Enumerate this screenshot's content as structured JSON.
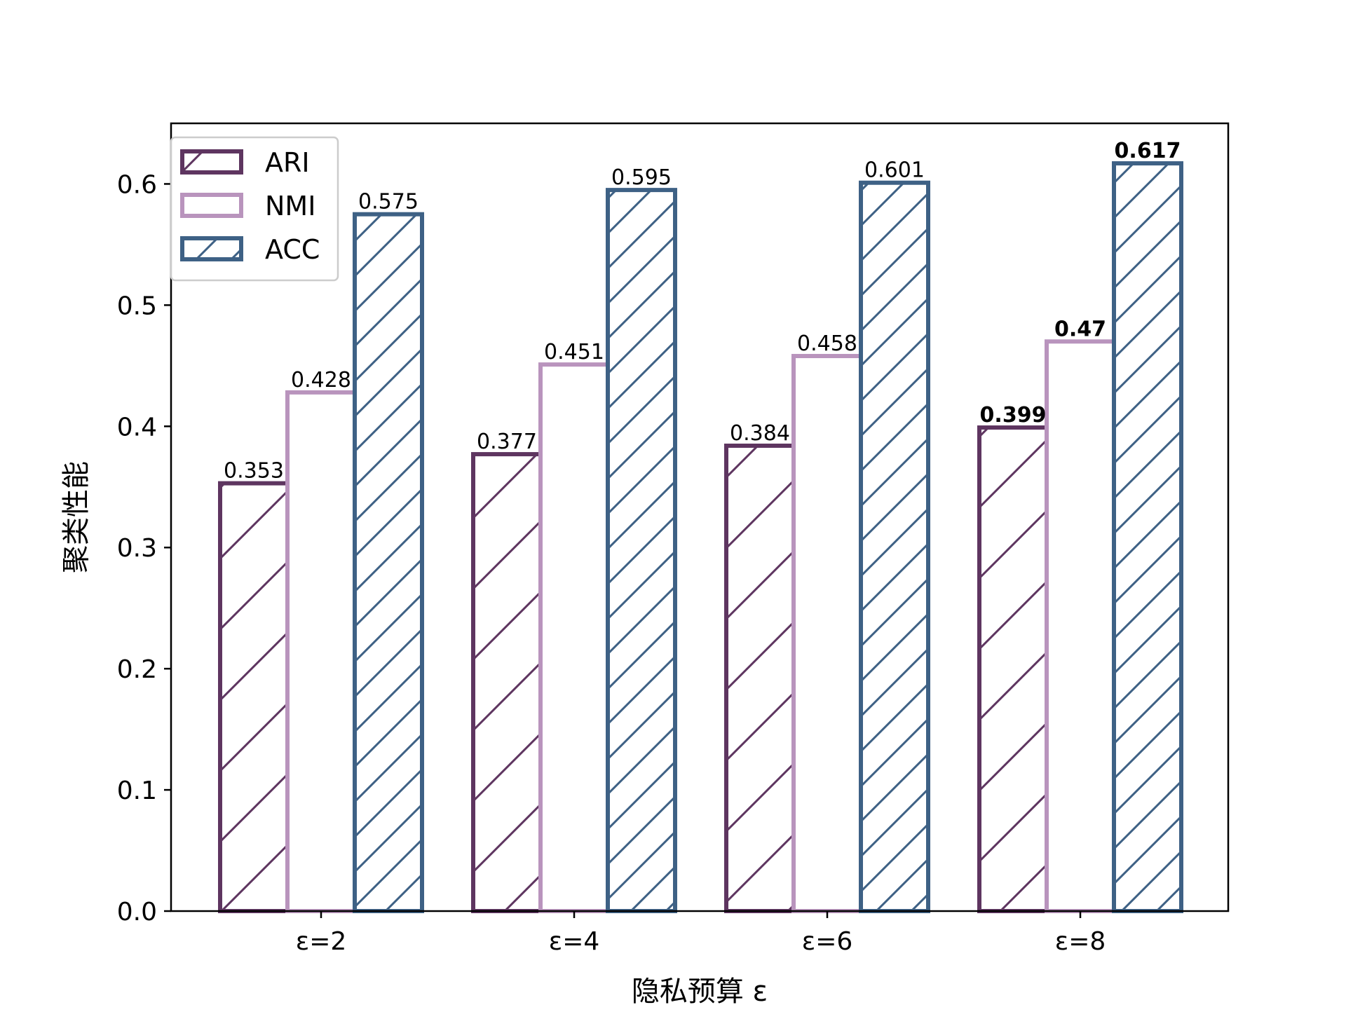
{
  "chart_data": {
    "type": "bar",
    "title": "",
    "xlabel": "隐私预算 ε",
    "ylabel": "聚类性能",
    "categories": [
      "ε=2",
      "ε=4",
      "ε=6",
      "ε=8"
    ],
    "ylim": [
      0,
      0.65
    ],
    "yticks": [
      0.0,
      0.1,
      0.2,
      0.3,
      0.4,
      0.5,
      0.6
    ],
    "ytick_labels": [
      "0.0",
      "0.1",
      "0.2",
      "0.3",
      "0.4",
      "0.5",
      "0.6"
    ],
    "grid": false,
    "legend_position": "top-left",
    "series": [
      {
        "name": "ARI",
        "color": "#5e3560",
        "hatch": "sparse-diagonal",
        "values": [
          0.353,
          0.377,
          0.384,
          0.399
        ],
        "labels": [
          "0.353",
          "0.377",
          "0.384",
          "0.399"
        ],
        "bold": [
          false,
          false,
          false,
          true
        ]
      },
      {
        "name": "NMI",
        "color": "#b994bd",
        "hatch": "none",
        "values": [
          0.428,
          0.451,
          0.458,
          0.47
        ],
        "labels": [
          "0.428",
          "0.451",
          "0.458",
          "0.47"
        ],
        "bold": [
          false,
          false,
          false,
          true
        ]
      },
      {
        "name": "ACC",
        "color": "#3e6185",
        "hatch": "dense-diagonal",
        "values": [
          0.575,
          0.595,
          0.601,
          0.617
        ],
        "labels": [
          "0.575",
          "0.595",
          "0.601",
          "0.617"
        ],
        "bold": [
          false,
          false,
          false,
          true
        ]
      }
    ]
  }
}
